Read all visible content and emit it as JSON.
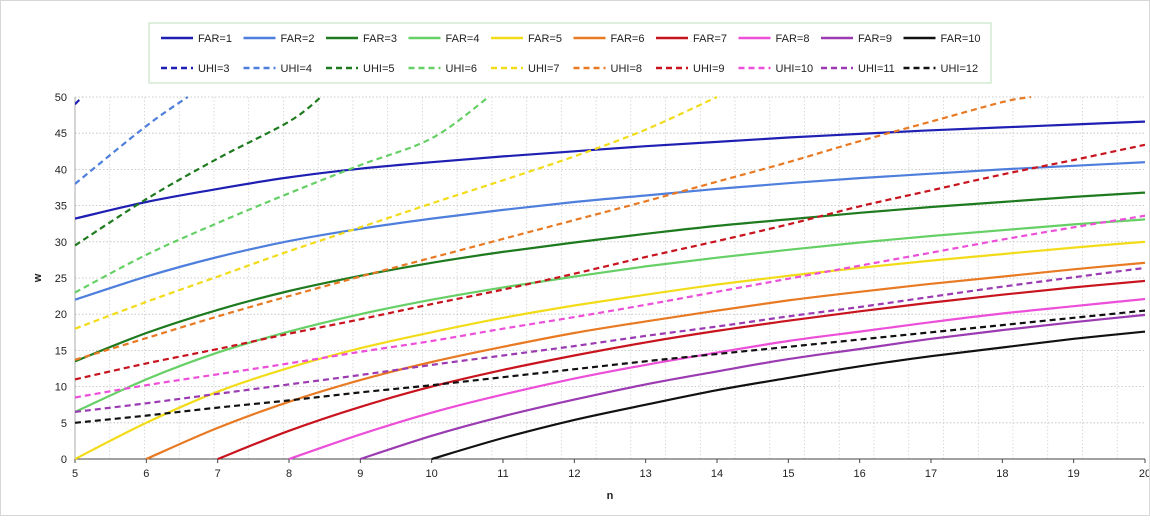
{
  "chart_data": {
    "type": "line",
    "title": "",
    "xlabel": "n",
    "ylabel": "w",
    "xlim": [
      5,
      20
    ],
    "ylim": [
      0,
      50
    ],
    "x_ticks": [
      "5",
      "6",
      "7",
      "8",
      "9",
      "10",
      "11",
      "12",
      "13",
      "14",
      "15",
      "16",
      "17",
      "18",
      "19",
      "20"
    ],
    "y_ticks": [
      "0",
      "5",
      "10",
      "15",
      "20",
      "25",
      "30",
      "35",
      "40",
      "45",
      "50"
    ],
    "grid": true,
    "legend_position": "top",
    "series": [
      {
        "name": "FAR=1",
        "color": "#1f1fb3",
        "style": "solid",
        "x": [
          5,
          6,
          7,
          8,
          9,
          10,
          11,
          12,
          13,
          14,
          15,
          16,
          17,
          18,
          19,
          20
        ],
        "y": [
          33.2,
          35.5,
          37.3,
          38.9,
          40.1,
          41.0,
          41.8,
          42.5,
          43.2,
          43.8,
          44.4,
          44.9,
          45.4,
          45.8,
          46.2,
          46.6
        ]
      },
      {
        "name": "FAR=2",
        "color": "#4f7fdc",
        "style": "solid",
        "x": [
          5,
          6,
          7,
          8,
          9,
          10,
          11,
          12,
          13,
          14,
          15,
          16,
          17,
          18,
          19,
          20
        ],
        "y": [
          22.0,
          25.2,
          27.9,
          30.1,
          31.8,
          33.2,
          34.4,
          35.5,
          36.4,
          37.3,
          38.1,
          38.8,
          39.4,
          40.0,
          40.5,
          41.0
        ]
      },
      {
        "name": "FAR=3",
        "color": "#1e7a1e",
        "style": "solid",
        "x": [
          5,
          6,
          7,
          8,
          9,
          10,
          11,
          12,
          13,
          14,
          15,
          16,
          17,
          18,
          19,
          20
        ],
        "y": [
          13.5,
          17.4,
          20.6,
          23.2,
          25.3,
          27.1,
          28.6,
          29.9,
          31.1,
          32.2,
          33.1,
          34.0,
          34.8,
          35.5,
          36.2,
          36.8
        ]
      },
      {
        "name": "FAR=4",
        "color": "#66d066",
        "style": "solid",
        "x": [
          5,
          6,
          7,
          8,
          9,
          10,
          11,
          12,
          13,
          14,
          15,
          16,
          17,
          18,
          19,
          20
        ],
        "y": [
          6.5,
          11.0,
          14.7,
          17.6,
          20.0,
          22.0,
          23.7,
          25.2,
          26.6,
          27.8,
          28.9,
          29.9,
          30.8,
          31.6,
          32.4,
          33.1
        ]
      },
      {
        "name": "FAR=5",
        "color": "#f2dc1a",
        "style": "solid",
        "x": [
          5,
          6,
          7,
          8,
          9,
          10,
          11,
          12,
          13,
          14,
          15,
          16,
          17,
          18,
          19,
          20
        ],
        "y": [
          0,
          5.0,
          9.3,
          12.6,
          15.3,
          17.5,
          19.5,
          21.2,
          22.7,
          24.1,
          25.3,
          26.4,
          27.4,
          28.3,
          29.2,
          30.0
        ]
      },
      {
        "name": "FAR=6",
        "color": "#e87a24",
        "style": "solid",
        "x": [
          6,
          7,
          8,
          9,
          10,
          11,
          12,
          13,
          14,
          15,
          16,
          17,
          18,
          19,
          20
        ],
        "y": [
          0,
          4.3,
          7.9,
          10.9,
          13.4,
          15.5,
          17.4,
          19.0,
          20.5,
          21.9,
          23.1,
          24.2,
          25.2,
          26.2,
          27.1
        ]
      },
      {
        "name": "FAR=7",
        "color": "#c8141e",
        "style": "solid",
        "x": [
          7,
          8,
          9,
          10,
          11,
          12,
          13,
          14,
          15,
          16,
          17,
          18,
          19,
          20
        ],
        "y": [
          0,
          3.9,
          7.2,
          10.0,
          12.3,
          14.3,
          16.1,
          17.7,
          19.1,
          20.4,
          21.6,
          22.7,
          23.7,
          24.6
        ]
      },
      {
        "name": "FAR=8",
        "color": "#ec4fd8",
        "style": "solid",
        "x": [
          8,
          9,
          10,
          11,
          12,
          13,
          14,
          15,
          16,
          17,
          18,
          19,
          20
        ],
        "y": [
          0,
          3.4,
          6.4,
          8.9,
          11.1,
          13.0,
          14.7,
          16.3,
          17.6,
          18.9,
          20.1,
          21.1,
          22.1
        ]
      },
      {
        "name": "FAR=9",
        "color": "#9b3bb2",
        "style": "solid",
        "x": [
          9,
          10,
          11,
          12,
          13,
          14,
          15,
          16,
          17,
          18,
          19,
          20
        ],
        "y": [
          0,
          3.2,
          5.9,
          8.2,
          10.3,
          12.1,
          13.8,
          15.2,
          16.6,
          17.8,
          18.9,
          19.9
        ]
      },
      {
        "name": "FAR=10",
        "color": "#111111",
        "style": "solid",
        "x": [
          10,
          11,
          12,
          13,
          14,
          15,
          16,
          17,
          18,
          19,
          20
        ],
        "y": [
          0,
          2.9,
          5.4,
          7.5,
          9.5,
          11.2,
          12.8,
          14.2,
          15.4,
          16.6,
          17.6
        ]
      },
      {
        "name": "UHI=3",
        "color": "#1f1fb3",
        "style": "dashed",
        "x": [
          5,
          5.1
        ],
        "y": [
          49.0,
          50.0
        ]
      },
      {
        "name": "UHI=4",
        "color": "#4f7fdc",
        "style": "dashed",
        "x": [
          5,
          6,
          6.58
        ],
        "y": [
          38.0,
          46.0,
          50.0
        ]
      },
      {
        "name": "UHI=5",
        "color": "#1e7a1e",
        "style": "dashed",
        "x": [
          5,
          6,
          7,
          8,
          8.45
        ],
        "y": [
          29.5,
          35.9,
          41.5,
          46.6,
          50.0
        ]
      },
      {
        "name": "UHI=6",
        "color": "#66d066",
        "style": "dashed",
        "x": [
          5,
          6,
          7,
          8,
          9,
          10,
          10.8
        ],
        "y": [
          23.0,
          28.2,
          32.6,
          36.7,
          40.6,
          44.3,
          50.0
        ]
      },
      {
        "name": "UHI=7",
        "color": "#f2dc1a",
        "style": "dashed",
        "x": [
          5,
          6,
          7,
          8,
          9,
          10,
          11,
          12,
          13,
          14
        ],
        "y": [
          18.0,
          21.7,
          25.2,
          28.7,
          32.0,
          35.3,
          38.5,
          41.8,
          45.5,
          50.0
        ]
      },
      {
        "name": "UHI=8",
        "color": "#e87a24",
        "style": "dashed",
        "x": [
          5,
          6,
          7,
          8,
          9,
          10,
          11,
          12,
          13,
          14,
          15,
          16,
          17,
          18,
          18.4
        ],
        "y": [
          13.7,
          16.7,
          19.7,
          22.5,
          25.2,
          27.8,
          30.4,
          33.0,
          35.6,
          38.3,
          41.0,
          43.9,
          46.6,
          49.3,
          50.0
        ]
      },
      {
        "name": "UHI=9",
        "color": "#c8141e",
        "style": "dashed",
        "x": [
          5,
          6,
          7,
          8,
          9,
          10,
          11,
          12,
          13,
          14,
          15,
          16,
          17,
          18,
          19,
          20
        ],
        "y": [
          11.0,
          13.2,
          15.2,
          17.3,
          19.3,
          21.4,
          23.4,
          25.6,
          27.9,
          30.1,
          32.4,
          34.9,
          37.1,
          39.3,
          41.3,
          43.4
        ]
      },
      {
        "name": "UHI=10",
        "color": "#ec4fd8",
        "style": "dashed",
        "x": [
          5,
          6,
          7,
          8,
          9,
          10,
          11,
          12,
          13,
          14,
          15,
          16,
          17,
          18,
          19,
          20
        ],
        "y": [
          8.5,
          10.2,
          11.7,
          13.2,
          14.8,
          16.3,
          18.0,
          19.6,
          21.3,
          23.1,
          24.9,
          26.7,
          28.5,
          30.3,
          32.0,
          33.6
        ]
      },
      {
        "name": "UHI=11",
        "color": "#9b3bb2",
        "style": "dashed",
        "x": [
          5,
          6,
          7,
          8,
          9,
          10,
          11,
          12,
          13,
          14,
          15,
          16,
          17,
          18,
          19,
          20
        ],
        "y": [
          6.5,
          7.7,
          9.0,
          10.3,
          11.6,
          13.0,
          14.3,
          15.6,
          17.0,
          18.3,
          19.7,
          21.0,
          22.4,
          23.8,
          25.1,
          26.4
        ]
      },
      {
        "name": "UHI=12",
        "color": "#111111",
        "style": "dashed",
        "x": [
          5,
          6,
          7,
          8,
          9,
          10,
          11,
          12,
          13,
          14,
          15,
          16,
          17,
          18,
          19,
          20
        ],
        "y": [
          5.0,
          6.0,
          7.1,
          8.1,
          9.2,
          10.2,
          11.3,
          12.4,
          13.5,
          14.5,
          15.5,
          16.5,
          17.5,
          18.5,
          19.5,
          20.5
        ]
      }
    ]
  }
}
